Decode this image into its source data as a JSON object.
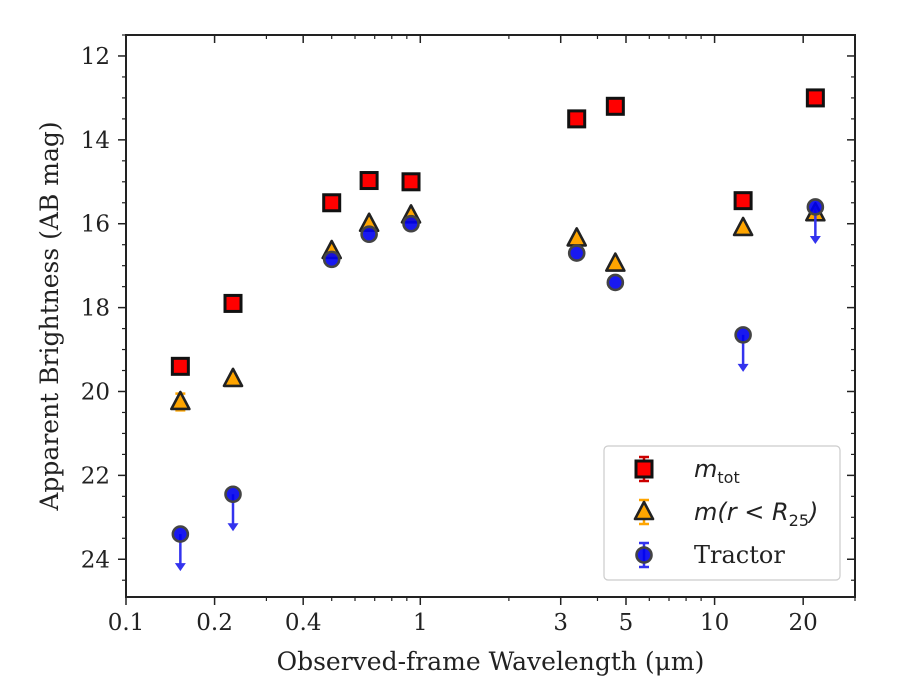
{
  "chart_data": {
    "type": "scatter",
    "xlabel": "Observed-frame Wavelength (μm)",
    "ylabel": "Apparent Brightness (AB mag)",
    "xscale": "log",
    "xlim": [
      0.1,
      30
    ],
    "ylim": [
      24.9,
      11.5
    ],
    "y_inverted": true,
    "xticks": [
      {
        "value": 0.1,
        "label": "0.1"
      },
      {
        "value": 0.2,
        "label": "0.2"
      },
      {
        "value": 0.4,
        "label": "0.4"
      },
      {
        "value": 1,
        "label": "1"
      },
      {
        "value": 3,
        "label": "3"
      },
      {
        "value": 5,
        "label": "5"
      },
      {
        "value": 10,
        "label": "10"
      },
      {
        "value": 20,
        "label": "20"
      }
    ],
    "yticks": [
      12,
      14,
      16,
      18,
      20,
      22,
      24
    ],
    "grid": false,
    "legend_position": "lower-right",
    "series": [
      {
        "name": "m_tot",
        "legend_parts": {
          "main": "m",
          "sub": "tot"
        },
        "marker": "square",
        "color": "#ff0000",
        "edge_color": "#111111",
        "errorbar_color": "#cc0000",
        "points": [
          {
            "x": 0.153,
            "y": 19.4
          },
          {
            "x": 0.231,
            "y": 17.9
          },
          {
            "x": 0.5,
            "y": 15.5
          },
          {
            "x": 0.67,
            "y": 14.97
          },
          {
            "x": 0.93,
            "y": 15.0
          },
          {
            "x": 3.4,
            "y": 13.5
          },
          {
            "x": 4.6,
            "y": 13.2
          },
          {
            "x": 12.5,
            "y": 15.45
          },
          {
            "x": 22.0,
            "y": 13.0
          }
        ]
      },
      {
        "name": "m(r < R_25)",
        "legend_parts": {
          "main": "m(r < R",
          "sub": "25",
          "tail": ")"
        },
        "marker": "triangle",
        "color": "#ffa500",
        "edge_color": "#222222",
        "errorbar_color": "#ffa500",
        "points": [
          {
            "x": 0.153,
            "y": 20.25,
            "err": 0.2
          },
          {
            "x": 0.231,
            "y": 19.7
          },
          {
            "x": 0.5,
            "y": 16.65
          },
          {
            "x": 0.67,
            "y": 16.0
          },
          {
            "x": 0.93,
            "y": 15.8
          },
          {
            "x": 3.4,
            "y": 16.35
          },
          {
            "x": 4.6,
            "y": 16.95
          },
          {
            "x": 12.5,
            "y": 16.1
          },
          {
            "x": 22.0,
            "y": 15.75
          }
        ]
      },
      {
        "name": "Tractor",
        "marker": "circle",
        "color": "#0000ee",
        "edge_color": "#444444",
        "errorbar_color": "#3333ee",
        "points": [
          {
            "x": 0.153,
            "y": 23.4,
            "upper_limit": true
          },
          {
            "x": 0.231,
            "y": 22.45,
            "upper_limit": true
          },
          {
            "x": 0.5,
            "y": 16.85
          },
          {
            "x": 0.67,
            "y": 16.25
          },
          {
            "x": 0.93,
            "y": 16.0
          },
          {
            "x": 3.4,
            "y": 16.7
          },
          {
            "x": 4.6,
            "y": 17.4
          },
          {
            "x": 12.5,
            "y": 18.65,
            "upper_limit": true
          },
          {
            "x": 22.0,
            "y": 15.6,
            "upper_limit": true
          }
        ]
      }
    ]
  }
}
